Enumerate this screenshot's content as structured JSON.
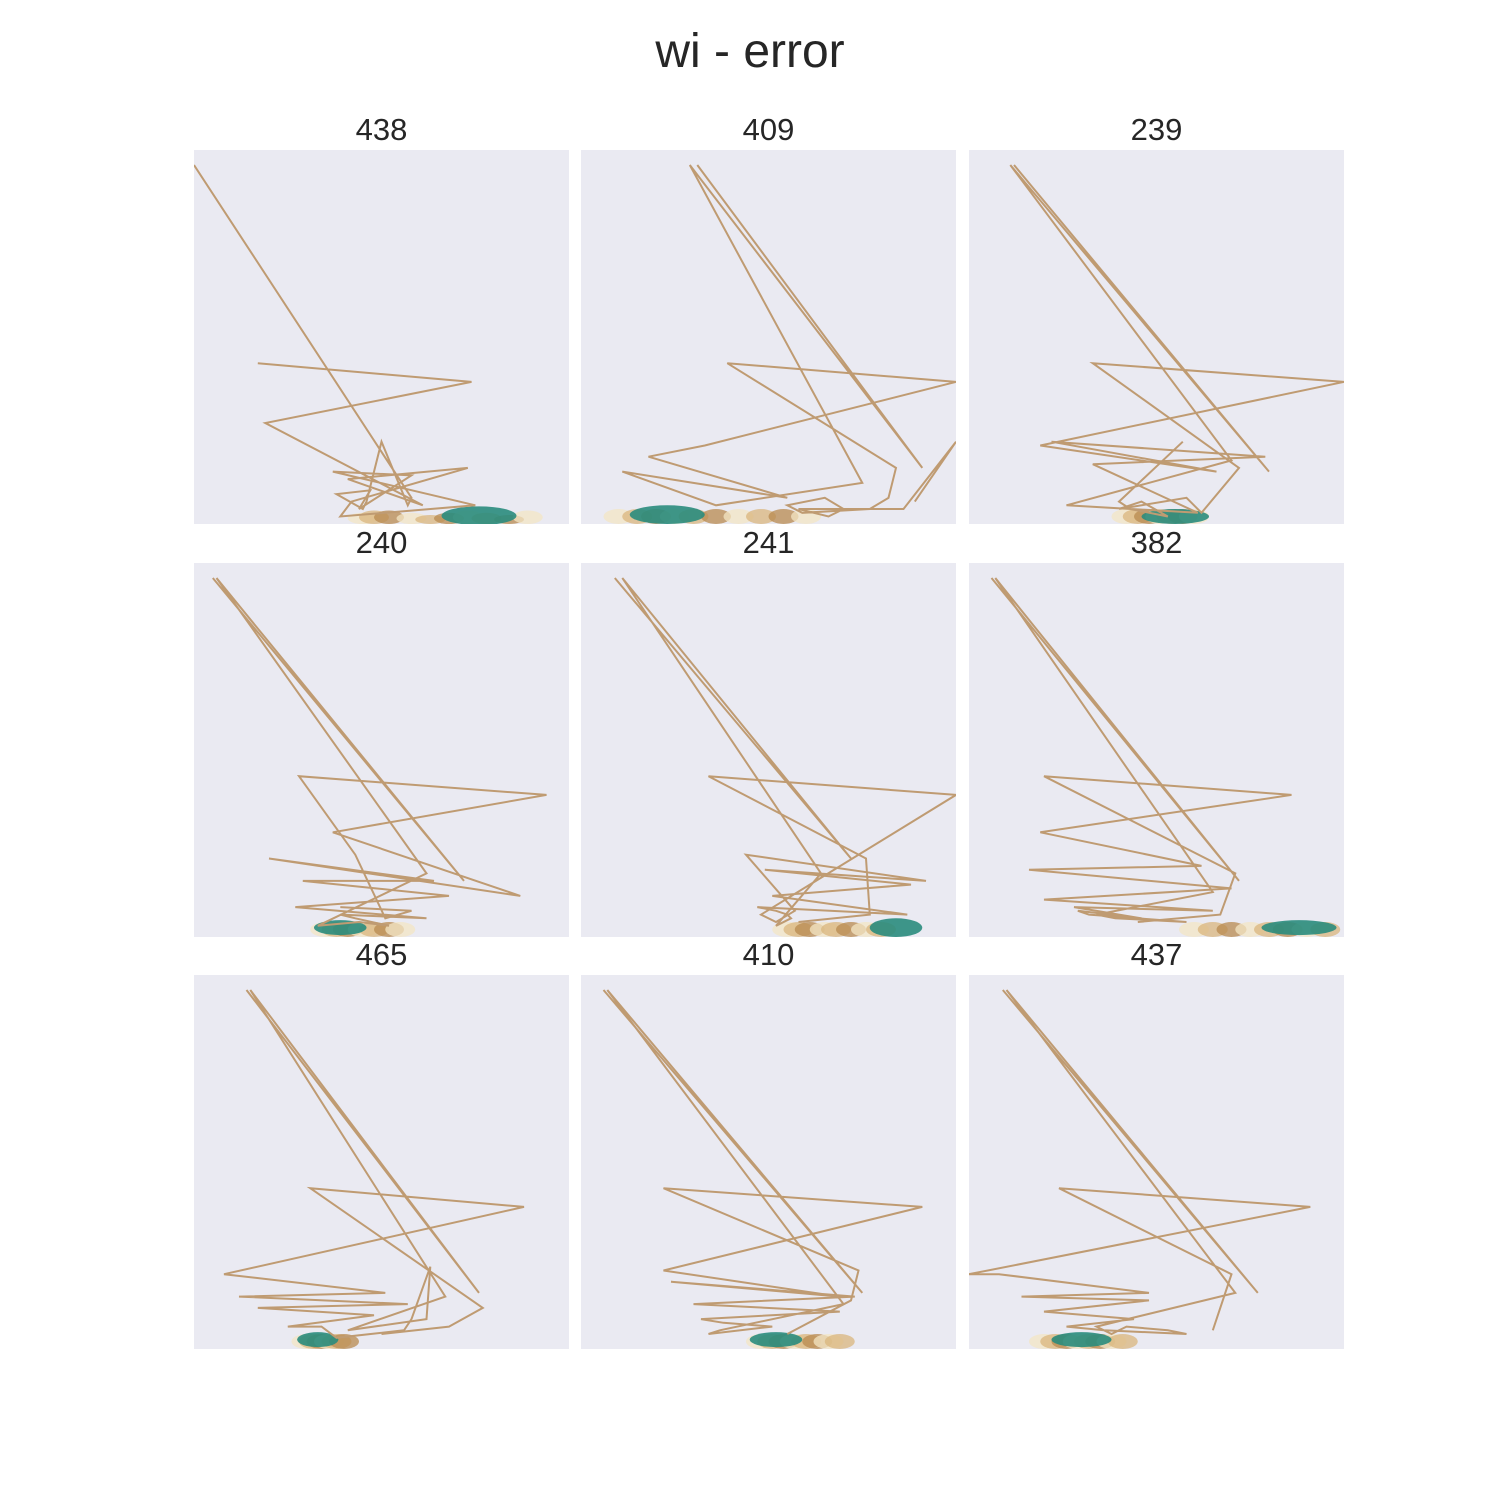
{
  "title": "wi - error",
  "chart_data": {
    "type": "line",
    "title": "wi - error",
    "grid": false,
    "axes_visible": false,
    "colors": {
      "background": "#eaeaf2",
      "line": "#bf9b72",
      "fan_light": "#f3e6c4",
      "fan_mid": "#d9b57e",
      "fan_dark": "#b8894f",
      "teal": "#2a8c7d"
    },
    "xlim": [
      0,
      100
    ],
    "ylim": [
      0,
      100
    ],
    "panels": [
      {
        "title": "438",
        "line": [
          [
            0,
            96
          ],
          [
            58,
            7
          ],
          [
            57,
            5
          ],
          [
            50,
            22
          ],
          [
            46,
            6
          ],
          [
            45,
            4
          ],
          [
            38,
            8
          ],
          [
            47,
            9
          ],
          [
            44,
            4
          ],
          [
            58,
            13
          ],
          [
            37,
            14
          ],
          [
            75,
            5
          ],
          [
            39,
            2
          ],
          [
            42,
            6
          ],
          [
            73,
            15
          ],
          [
            41,
            12
          ],
          [
            61,
            5
          ],
          [
            19,
            27
          ],
          [
            74,
            38
          ],
          [
            17,
            43
          ]
        ],
        "fan": [
          [
            45,
            1.5
          ],
          [
            48,
            1.8
          ],
          [
            52,
            1.8
          ],
          [
            58,
            1.5
          ],
          [
            63,
            1.2
          ],
          [
            68,
            1.5
          ],
          [
            73,
            1.8
          ],
          [
            78,
            1.5
          ],
          [
            84,
            1.2
          ],
          [
            89,
            1.8
          ]
        ],
        "teal": [
          [
            76,
            2.2,
            20,
            2.5
          ]
        ]
      },
      {
        "title": "409",
        "line": [
          [
            31,
            96
          ],
          [
            91,
            15
          ],
          [
            29,
            96
          ],
          [
            75,
            11
          ],
          [
            36,
            5
          ],
          [
            11,
            14
          ],
          [
            55,
            7
          ],
          [
            18,
            18
          ],
          [
            33,
            21
          ],
          [
            100,
            38
          ],
          [
            39,
            43
          ],
          [
            84,
            15
          ],
          [
            82,
            7
          ],
          [
            77,
            4
          ],
          [
            59,
            3
          ],
          [
            55,
            5
          ],
          [
            65,
            7
          ],
          [
            70,
            4
          ],
          [
            66,
            2
          ],
          [
            58,
            4
          ],
          [
            86,
            4
          ],
          [
            100,
            22
          ],
          [
            89,
            6
          ]
        ],
        "fan": [
          [
            10,
            2
          ],
          [
            15,
            2
          ],
          [
            20,
            2
          ],
          [
            25,
            2
          ],
          [
            30,
            2
          ],
          [
            36,
            2
          ],
          [
            42,
            2
          ],
          [
            48,
            2
          ],
          [
            54,
            2
          ],
          [
            60,
            2
          ]
        ],
        "teal": [
          [
            23,
            2.5,
            20,
            2.5
          ]
        ]
      },
      {
        "title": "239",
        "line": [
          [
            12,
            96
          ],
          [
            80,
            14
          ],
          [
            11,
            96
          ],
          [
            70,
            17
          ],
          [
            26,
            5
          ],
          [
            61,
            3
          ],
          [
            33,
            16
          ],
          [
            79,
            18
          ],
          [
            22,
            22
          ],
          [
            66,
            14
          ],
          [
            19,
            21
          ],
          [
            100,
            38
          ],
          [
            33,
            43
          ],
          [
            72,
            15
          ],
          [
            62,
            3
          ],
          [
            58,
            7
          ],
          [
            40,
            4
          ],
          [
            46,
            6
          ],
          [
            53,
            2
          ],
          [
            43,
            4
          ],
          [
            40,
            6
          ],
          [
            57,
            22
          ]
        ],
        "fan": [
          [
            42,
            2
          ],
          [
            45,
            2
          ],
          [
            48,
            2
          ],
          [
            51,
            2
          ],
          [
            54,
            2
          ],
          [
            57,
            2
          ],
          [
            60,
            2
          ]
        ],
        "teal": [
          [
            55,
            2,
            18,
            2
          ]
        ]
      },
      {
        "title": "240",
        "line": [
          [
            5,
            96
          ],
          [
            72,
            15
          ],
          [
            6,
            96
          ],
          [
            62,
            17
          ],
          [
            33,
            3
          ],
          [
            44,
            4
          ],
          [
            52,
            3
          ],
          [
            43,
            5
          ],
          [
            39,
            6
          ],
          [
            62,
            5
          ],
          [
            27,
            8
          ],
          [
            68,
            11
          ],
          [
            29,
            15
          ],
          [
            64,
            15
          ],
          [
            20,
            21
          ],
          [
            87,
            11
          ],
          [
            37,
            28
          ],
          [
            94,
            38
          ],
          [
            28,
            43
          ],
          [
            43,
            22
          ],
          [
            51,
            5
          ],
          [
            58,
            7
          ],
          [
            39,
            8
          ]
        ],
        "fan": [
          [
            35,
            2
          ],
          [
            38,
            2
          ],
          [
            41,
            2
          ],
          [
            45,
            2
          ],
          [
            48,
            2
          ],
          [
            52,
            2
          ],
          [
            55,
            2
          ]
        ],
        "teal": [
          [
            39,
            2.5,
            14,
            2
          ]
        ]
      },
      {
        "title": "241",
        "line": [
          [
            9,
            96
          ],
          [
            72,
            21
          ],
          [
            11,
            96
          ],
          [
            64,
            17
          ],
          [
            52,
            3
          ],
          [
            56,
            5
          ],
          [
            55,
            6
          ],
          [
            52,
            7
          ],
          [
            47,
            8
          ],
          [
            87,
            6
          ],
          [
            51,
            11
          ],
          [
            88,
            14
          ],
          [
            49,
            18
          ],
          [
            92,
            15
          ],
          [
            44,
            22
          ],
          [
            57,
            7
          ],
          [
            52,
            4
          ],
          [
            48,
            6
          ],
          [
            100,
            38
          ],
          [
            34,
            43
          ],
          [
            76,
            21
          ],
          [
            77,
            6
          ],
          [
            58,
            4
          ]
        ],
        "fan": [
          [
            55,
            2
          ],
          [
            58,
            2
          ],
          [
            61,
            2
          ],
          [
            65,
            2
          ],
          [
            68,
            2
          ],
          [
            72,
            2
          ],
          [
            76,
            2
          ],
          [
            80,
            2
          ]
        ],
        "teal": [
          [
            84,
            2.5,
            14,
            2.5
          ]
        ]
      },
      {
        "title": "382",
        "line": [
          [
            6,
            96
          ],
          [
            72,
            15
          ],
          [
            7,
            96
          ],
          [
            65,
            12
          ],
          [
            34,
            6
          ],
          [
            39,
            5
          ],
          [
            58,
            4
          ],
          [
            32,
            6
          ],
          [
            29,
            7
          ],
          [
            46,
            5
          ],
          [
            28,
            8
          ],
          [
            65,
            7
          ],
          [
            20,
            10
          ],
          [
            70,
            13
          ],
          [
            16,
            18
          ],
          [
            62,
            19
          ],
          [
            19,
            28
          ],
          [
            86,
            38
          ],
          [
            20,
            43
          ],
          [
            71,
            17
          ],
          [
            67,
            6
          ],
          [
            45,
            4
          ]
        ],
        "fan": [
          [
            60,
            2
          ],
          [
            65,
            2
          ],
          [
            70,
            2
          ],
          [
            75,
            2
          ],
          [
            80,
            2
          ],
          [
            85,
            2
          ],
          [
            90,
            2
          ],
          [
            95,
            2
          ]
        ],
        "teal": [
          [
            88,
            2.5,
            20,
            2
          ]
        ]
      },
      {
        "title": "465",
        "line": [
          [
            14,
            96
          ],
          [
            76,
            15
          ],
          [
            15,
            96
          ],
          [
            67,
            14
          ],
          [
            41,
            5
          ],
          [
            62,
            8
          ],
          [
            63,
            22
          ],
          [
            58,
            8
          ],
          [
            56,
            5
          ],
          [
            38,
            3
          ],
          [
            34,
            6
          ],
          [
            25,
            6
          ],
          [
            48,
            9
          ],
          [
            17,
            11
          ],
          [
            57,
            12
          ],
          [
            12,
            14
          ],
          [
            51,
            15
          ],
          [
            8,
            20
          ],
          [
            88,
            38
          ],
          [
            31,
            43
          ],
          [
            77,
            11
          ],
          [
            68,
            6
          ],
          [
            50,
            4
          ]
        ],
        "fan": [
          [
            30,
            2
          ],
          [
            32,
            2
          ],
          [
            34,
            2
          ],
          [
            36,
            2
          ],
          [
            38,
            2
          ],
          [
            40,
            2
          ]
        ],
        "teal": [
          [
            33,
            2.5,
            11,
            2
          ]
        ]
      },
      {
        "title": "410",
        "line": [
          [
            6,
            96
          ],
          [
            75,
            15
          ],
          [
            7,
            96
          ],
          [
            70,
            12
          ],
          [
            37,
            5
          ],
          [
            34,
            4
          ],
          [
            51,
            6
          ],
          [
            38,
            7
          ],
          [
            32,
            8
          ],
          [
            69,
            10
          ],
          [
            30,
            12
          ],
          [
            73,
            14
          ],
          [
            24,
            18
          ],
          [
            69,
            14
          ],
          [
            22,
            21
          ],
          [
            91,
            38
          ],
          [
            22,
            43
          ],
          [
            74,
            21
          ],
          [
            72,
            13
          ],
          [
            55,
            4
          ]
        ],
        "fan": [
          [
            48,
            2
          ],
          [
            51,
            2
          ],
          [
            54,
            2
          ],
          [
            57,
            2
          ],
          [
            60,
            2
          ],
          [
            63,
            2
          ],
          [
            66,
            2
          ],
          [
            69,
            2
          ]
        ],
        "teal": [
          [
            52,
            2.5,
            14,
            2
          ]
        ]
      },
      {
        "title": "437",
        "line": [
          [
            9,
            96
          ],
          [
            77,
            15
          ],
          [
            10,
            96
          ],
          [
            71,
            15
          ],
          [
            34,
            6
          ],
          [
            38,
            4
          ],
          [
            42,
            6
          ],
          [
            53,
            5
          ],
          [
            58,
            4
          ],
          [
            36,
            5
          ],
          [
            26,
            6
          ],
          [
            44,
            8
          ],
          [
            20,
            10
          ],
          [
            48,
            13
          ],
          [
            14,
            14
          ],
          [
            48,
            15
          ],
          [
            8,
            20
          ],
          [
            0,
            20
          ],
          [
            91,
            38
          ],
          [
            24,
            43
          ],
          [
            70,
            20
          ],
          [
            65,
            5
          ]
        ],
        "fan": [
          [
            20,
            2
          ],
          [
            23,
            2
          ],
          [
            26,
            2
          ],
          [
            29,
            2
          ],
          [
            32,
            2
          ],
          [
            35,
            2
          ],
          [
            38,
            2
          ],
          [
            41,
            2
          ]
        ],
        "teal": [
          [
            30,
            2.5,
            16,
            2
          ]
        ]
      }
    ]
  }
}
